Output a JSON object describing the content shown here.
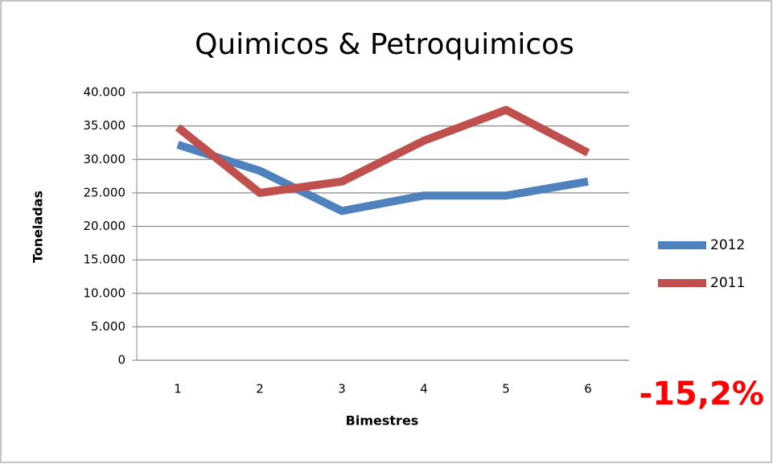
{
  "chart_data": {
    "type": "line",
    "title": "Quimicos & Petroquimicos",
    "x_label": "Bimestres",
    "y_label": "Toneladas",
    "categories": [
      "1",
      "2",
      "3",
      "4",
      "5",
      "6"
    ],
    "series": [
      {
        "name": "2012",
        "color": "#4f81bd",
        "values": [
          32200,
          28300,
          22300,
          24600,
          24600,
          26700
        ]
      },
      {
        "name": "2011",
        "color": "#c0504d",
        "values": [
          34800,
          25000,
          26700,
          32800,
          37400,
          31000
        ]
      }
    ],
    "ylim": [
      0,
      40000
    ],
    "yticks": [
      0,
      {
        "value": 5000,
        "label": "5.000"
      },
      {
        "value": 10000,
        "label": "10.000"
      },
      {
        "value": 15000,
        "label": "15.000"
      },
      {
        "value": 20000,
        "label": "20.000"
      },
      {
        "value": 25000,
        "label": "25.000"
      },
      {
        "value": 30000,
        "label": "30.000"
      },
      {
        "value": 35000,
        "label": "35.000"
      },
      {
        "value": 40000,
        "label": "40.000"
      }
    ],
    "grid": true,
    "legend": "right",
    "annotation": "-15,2%"
  }
}
